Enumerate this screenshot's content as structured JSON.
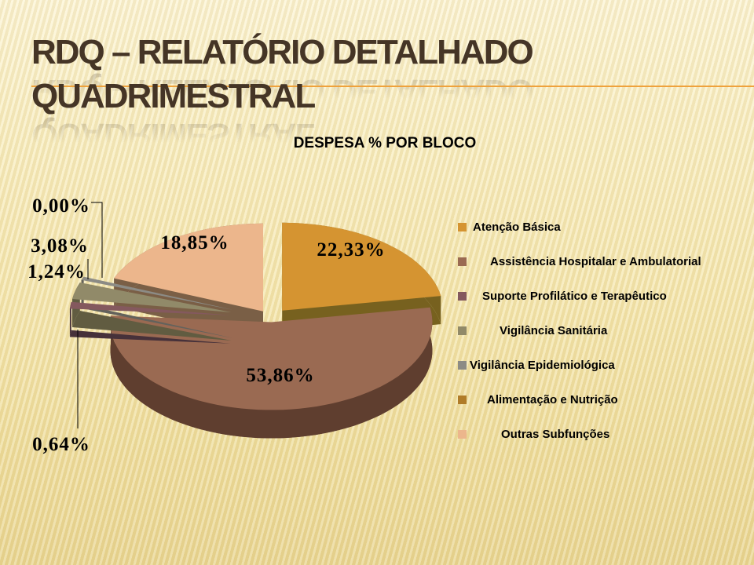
{
  "slide": {
    "title_line1": "RDQ – RELATÓRIO DETALHADO",
    "title_line2": "QUADRIMESTRAL"
  },
  "chart_data": {
    "type": "pie",
    "style": "3d-exploded",
    "title": "DESPESA % POR BLOCO",
    "unit": "%",
    "legend_position": "right",
    "slices": [
      {
        "label": "Atenção Básica",
        "value": 22.33,
        "display": "22,33%",
        "color": "#D59431",
        "side_color": "#77611F"
      },
      {
        "label": "Assistência Hospitalar e Ambulatorial",
        "value": 53.86,
        "display": "53,86%",
        "color": "#9A6A52",
        "side_color": "#5F3E2F"
      },
      {
        "label": "Suporte Profilático e Terapêutico",
        "value": 1.24,
        "display": "1,24%",
        "color": "#84595E",
        "side_color": "#46313A"
      },
      {
        "label": "Vigilância Sanitária",
        "value": 3.08,
        "display": "3,08%",
        "color": "#918A69",
        "side_color": "#615C41"
      },
      {
        "label": "Vigilância Epidemiológica",
        "value": 0.64,
        "display": "0,64%",
        "color": "#8C8B85",
        "side_color": "#63625C"
      },
      {
        "label": "Alimentação e Nutrição",
        "value": 0.0,
        "display": "0,00%",
        "color": "#B07C28",
        "side_color": "#7F5A1D"
      },
      {
        "label": "Outras Subfunções",
        "value": 18.85,
        "display": "18,85%",
        "color": "#ECB68C",
        "side_color": "#7A5F46"
      }
    ]
  }
}
